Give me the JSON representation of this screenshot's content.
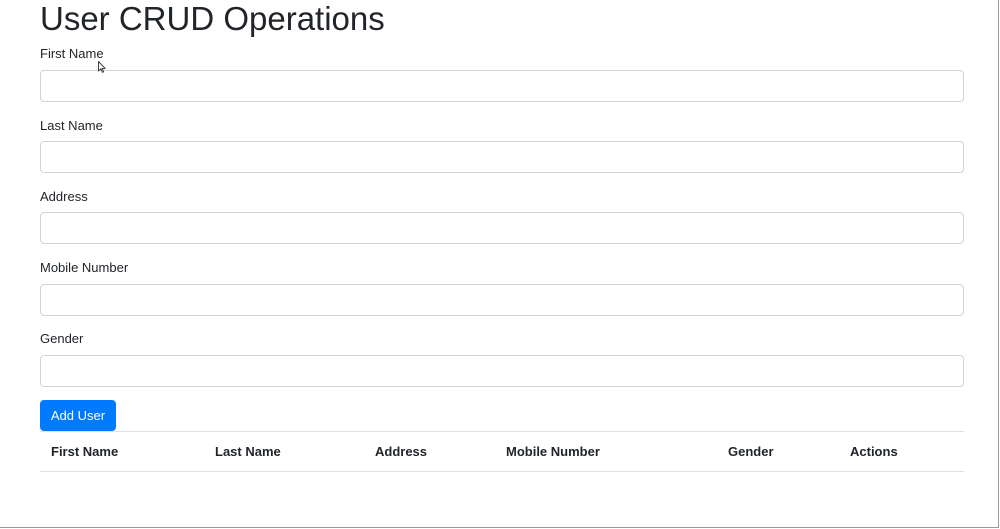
{
  "page": {
    "title": "User CRUD Operations"
  },
  "form": {
    "fields": [
      {
        "label": "First Name",
        "value": "",
        "placeholder": ""
      },
      {
        "label": "Last Name",
        "value": "",
        "placeholder": ""
      },
      {
        "label": "Address",
        "value": "",
        "placeholder": ""
      },
      {
        "label": "Mobile Number",
        "value": "",
        "placeholder": ""
      },
      {
        "label": "Gender",
        "value": "",
        "placeholder": ""
      }
    ],
    "submit_label": "Add User"
  },
  "table": {
    "columns": [
      "First Name",
      "Last Name",
      "Address",
      "Mobile Number",
      "Gender",
      "Actions"
    ],
    "rows": []
  },
  "colors": {
    "primary": "#007bff",
    "border": "#ced4da",
    "text": "#212529"
  },
  "icons": {
    "pointer": "mouse-cursor-icon"
  }
}
